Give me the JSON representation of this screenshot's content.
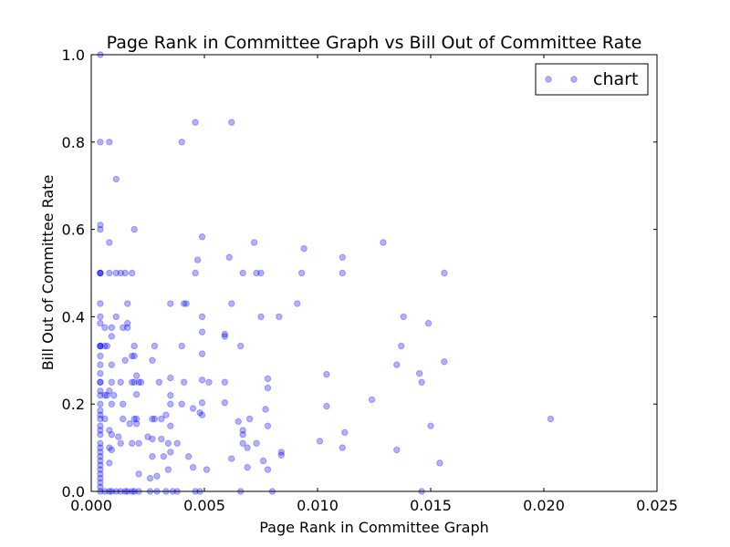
{
  "chart_data": {
    "type": "scatter",
    "title": "Page Rank in Committee Graph vs Bill Out of Committee Rate",
    "xlabel": "Page Rank in Committee Graph",
    "ylabel": "Bill Out of Committee Rate",
    "xlim": [
      0.0,
      0.025
    ],
    "ylim": [
      0.0,
      1.0
    ],
    "xticks": [
      "0.000",
      "0.005",
      "0.010",
      "0.015",
      "0.020",
      "0.025"
    ],
    "yticks": [
      "0.0",
      "0.2",
      "0.4",
      "0.6",
      "0.8",
      "1.0"
    ],
    "grid": false,
    "legend": {
      "position": "top-right",
      "entries": [
        "chart"
      ]
    },
    "colors": {
      "marker": "#0000ff",
      "marker_opacity": 0.3
    },
    "series": [
      {
        "name": "chart",
        "points": [
          [
            0.0004,
            1.0
          ],
          [
            0.0004,
            0.8
          ],
          [
            0.0008,
            0.8
          ],
          [
            0.004,
            0.8
          ],
          [
            0.0046,
            0.845
          ],
          [
            0.0062,
            0.845
          ],
          [
            0.0011,
            0.715
          ],
          [
            0.0004,
            0.61
          ],
          [
            0.0004,
            0.6
          ],
          [
            0.0019,
            0.6
          ],
          [
            0.0008,
            0.57
          ],
          [
            0.0049,
            0.583
          ],
          [
            0.0072,
            0.57
          ],
          [
            0.0094,
            0.556
          ],
          [
            0.0129,
            0.57
          ],
          [
            0.0061,
            0.536
          ],
          [
            0.0047,
            0.53
          ],
          [
            0.0111,
            0.536
          ],
          [
            0.0004,
            0.5
          ],
          [
            0.0004,
            0.5
          ],
          [
            0.0004,
            0.5
          ],
          [
            0.0008,
            0.5
          ],
          [
            0.0011,
            0.5
          ],
          [
            0.0013,
            0.5
          ],
          [
            0.0015,
            0.5
          ],
          [
            0.0018,
            0.5
          ],
          [
            0.0046,
            0.5
          ],
          [
            0.0067,
            0.5
          ],
          [
            0.0073,
            0.5
          ],
          [
            0.0075,
            0.5
          ],
          [
            0.0093,
            0.5
          ],
          [
            0.0111,
            0.5
          ],
          [
            0.0156,
            0.5
          ],
          [
            0.0004,
            0.43
          ],
          [
            0.0016,
            0.43
          ],
          [
            0.0035,
            0.43
          ],
          [
            0.0041,
            0.43
          ],
          [
            0.0042,
            0.43
          ],
          [
            0.0062,
            0.43
          ],
          [
            0.0091,
            0.43
          ],
          [
            0.0004,
            0.4
          ],
          [
            0.0011,
            0.4
          ],
          [
            0.0049,
            0.4
          ],
          [
            0.0075,
            0.4
          ],
          [
            0.0083,
            0.4
          ],
          [
            0.0138,
            0.4
          ],
          [
            0.0004,
            0.385
          ],
          [
            0.0006,
            0.375
          ],
          [
            0.0009,
            0.375
          ],
          [
            0.0014,
            0.375
          ],
          [
            0.0016,
            0.385
          ],
          [
            0.0016,
            0.375
          ],
          [
            0.0049,
            0.365
          ],
          [
            0.0059,
            0.36
          ],
          [
            0.0059,
            0.355
          ],
          [
            0.0149,
            0.385
          ],
          [
            0.0009,
            0.355
          ],
          [
            0.0004,
            0.333
          ],
          [
            0.0004,
            0.333
          ],
          [
            0.0004,
            0.333
          ],
          [
            0.0006,
            0.333
          ],
          [
            0.0007,
            0.333
          ],
          [
            0.0019,
            0.333
          ],
          [
            0.0028,
            0.333
          ],
          [
            0.004,
            0.333
          ],
          [
            0.0066,
            0.333
          ],
          [
            0.0137,
            0.333
          ],
          [
            0.0004,
            0.31
          ],
          [
            0.0018,
            0.31
          ],
          [
            0.0019,
            0.31
          ],
          [
            0.0049,
            0.315
          ],
          [
            0.0004,
            0.29
          ],
          [
            0.0009,
            0.29
          ],
          [
            0.0015,
            0.3
          ],
          [
            0.0027,
            0.3
          ],
          [
            0.0135,
            0.29
          ],
          [
            0.0156,
            0.297
          ],
          [
            0.0004,
            0.27
          ],
          [
            0.002,
            0.265
          ],
          [
            0.0035,
            0.26
          ],
          [
            0.0049,
            0.255
          ],
          [
            0.0078,
            0.258
          ],
          [
            0.0104,
            0.268
          ],
          [
            0.0145,
            0.27
          ],
          [
            0.0004,
            0.25
          ],
          [
            0.0004,
            0.25
          ],
          [
            0.0009,
            0.25
          ],
          [
            0.0013,
            0.25
          ],
          [
            0.0018,
            0.25
          ],
          [
            0.0019,
            0.25
          ],
          [
            0.0021,
            0.25
          ],
          [
            0.0022,
            0.25
          ],
          [
            0.003,
            0.25
          ],
          [
            0.0041,
            0.25
          ],
          [
            0.0052,
            0.25
          ],
          [
            0.0059,
            0.25
          ],
          [
            0.0146,
            0.25
          ],
          [
            0.0004,
            0.23
          ],
          [
            0.0008,
            0.23
          ],
          [
            0.001,
            0.22
          ],
          [
            0.0035,
            0.22
          ],
          [
            0.0078,
            0.237
          ],
          [
            0.0004,
            0.22
          ],
          [
            0.0006,
            0.22
          ],
          [
            0.0007,
            0.22
          ],
          [
            0.002,
            0.222
          ],
          [
            0.0004,
            0.2
          ],
          [
            0.0009,
            0.2
          ],
          [
            0.0014,
            0.2
          ],
          [
            0.0035,
            0.2
          ],
          [
            0.004,
            0.2
          ],
          [
            0.0049,
            0.203
          ],
          [
            0.0059,
            0.203
          ],
          [
            0.0124,
            0.21
          ],
          [
            0.0004,
            0.185
          ],
          [
            0.0004,
            0.175
          ],
          [
            0.0045,
            0.19
          ],
          [
            0.0048,
            0.18
          ],
          [
            0.0049,
            0.175
          ],
          [
            0.0077,
            0.188
          ],
          [
            0.0104,
            0.195
          ],
          [
            0.0004,
            0.166
          ],
          [
            0.0006,
            0.166
          ],
          [
            0.0014,
            0.166
          ],
          [
            0.0019,
            0.166
          ],
          [
            0.002,
            0.166
          ],
          [
            0.0027,
            0.166
          ],
          [
            0.0028,
            0.166
          ],
          [
            0.0031,
            0.166
          ],
          [
            0.0033,
            0.175
          ],
          [
            0.0065,
            0.16
          ],
          [
            0.007,
            0.166
          ],
          [
            0.0203,
            0.166
          ],
          [
            0.0004,
            0.15
          ],
          [
            0.0004,
            0.14
          ],
          [
            0.0008,
            0.14
          ],
          [
            0.0017,
            0.155
          ],
          [
            0.002,
            0.155
          ],
          [
            0.0035,
            0.15
          ],
          [
            0.0067,
            0.14
          ],
          [
            0.0067,
            0.13
          ],
          [
            0.0078,
            0.15
          ],
          [
            0.0112,
            0.135
          ],
          [
            0.015,
            0.15
          ],
          [
            0.0004,
            0.13
          ],
          [
            0.0009,
            0.13
          ],
          [
            0.0012,
            0.125
          ],
          [
            0.0025,
            0.125
          ],
          [
            0.0027,
            0.12
          ],
          [
            0.0031,
            0.12
          ],
          [
            0.0004,
            0.11
          ],
          [
            0.0004,
            0.1
          ],
          [
            0.0008,
            0.1
          ],
          [
            0.0009,
            0.095
          ],
          [
            0.0013,
            0.11
          ],
          [
            0.0018,
            0.11
          ],
          [
            0.0021,
            0.11
          ],
          [
            0.0034,
            0.11
          ],
          [
            0.0038,
            0.11
          ],
          [
            0.0067,
            0.11
          ],
          [
            0.0069,
            0.1
          ],
          [
            0.0073,
            0.11
          ],
          [
            0.0101,
            0.115
          ],
          [
            0.0111,
            0.1
          ],
          [
            0.0135,
            0.095
          ],
          [
            0.0004,
            0.09
          ],
          [
            0.0004,
            0.08
          ],
          [
            0.0027,
            0.08
          ],
          [
            0.0032,
            0.08
          ],
          [
            0.0035,
            0.09
          ],
          [
            0.0043,
            0.08
          ],
          [
            0.0062,
            0.075
          ],
          [
            0.0076,
            0.07
          ],
          [
            0.0084,
            0.09
          ],
          [
            0.0084,
            0.083
          ],
          [
            0.0004,
            0.07
          ],
          [
            0.0004,
            0.06
          ],
          [
            0.0008,
            0.065
          ],
          [
            0.0154,
            0.065
          ],
          [
            0.0004,
            0.05
          ],
          [
            0.0004,
            0.04
          ],
          [
            0.0004,
            0.03
          ],
          [
            0.0021,
            0.04
          ],
          [
            0.0026,
            0.03
          ],
          [
            0.0029,
            0.035
          ],
          [
            0.0034,
            0.05
          ],
          [
            0.0045,
            0.055
          ],
          [
            0.0051,
            0.05
          ],
          [
            0.0069,
            0.055
          ],
          [
            0.0078,
            0.05
          ],
          [
            0.0004,
            0.02
          ],
          [
            0.0004,
            0.01
          ],
          [
            0.0004,
            0.0
          ],
          [
            0.0006,
            0.0
          ],
          [
            0.0008,
            0.0
          ],
          [
            0.0009,
            0.0
          ],
          [
            0.0011,
            0.0
          ],
          [
            0.0013,
            0.0
          ],
          [
            0.0015,
            0.0
          ],
          [
            0.0016,
            0.0
          ],
          [
            0.0018,
            0.0
          ],
          [
            0.0019,
            0.0
          ],
          [
            0.0021,
            0.0
          ],
          [
            0.0026,
            0.0
          ],
          [
            0.0029,
            0.0
          ],
          [
            0.0033,
            0.0
          ],
          [
            0.0036,
            0.0
          ],
          [
            0.0038,
            0.0
          ],
          [
            0.0046,
            0.0
          ],
          [
            0.0048,
            0.0
          ],
          [
            0.0066,
            0.0
          ],
          [
            0.008,
            0.0
          ],
          [
            0.0146,
            0.0
          ]
        ]
      }
    ]
  }
}
